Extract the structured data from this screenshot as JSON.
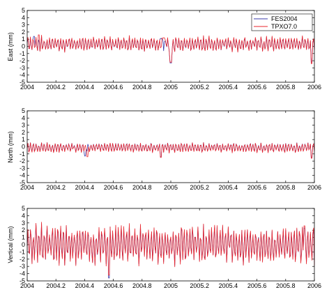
{
  "colors": {
    "FES2004": "#3a3aa8",
    "TPXO7.0": "#e8262e"
  },
  "legend": [
    "FES2004",
    "TPXO7.0"
  ],
  "chart_data": [
    {
      "type": "line",
      "panel": "east",
      "ylabel": "East (mm)",
      "xlim": [
        2004,
        2006
      ],
      "ylim": [
        -5,
        5
      ],
      "xticks": [
        "2004",
        "2004.2",
        "2004.4",
        "2004.6",
        "2004.8",
        "2005",
        "2005.2",
        "2005.4",
        "2005.6",
        "2005.8",
        "2006"
      ],
      "yticks": [
        "-5",
        "-4",
        "-3",
        "-2",
        "-1",
        "0",
        "1",
        "2",
        "3",
        "4",
        "5"
      ],
      "legend_position": "top-right",
      "series": [
        {
          "name": "FES2004",
          "offset": 0.3,
          "amp": 0.9,
          "spikes": [
            [
              2004.05,
              1.4
            ],
            [
              2004.93,
              1.1
            ],
            [
              2005.0,
              -2.3
            ],
            [
              2005.98,
              -2.2
            ]
          ]
        },
        {
          "name": "TPXO7.0",
          "offset": 0.35,
          "amp": 1.0,
          "spikes": [
            [
              2004.08,
              1.6
            ],
            [
              2004.95,
              1.2
            ],
            [
              2005.0,
              -2.2
            ],
            [
              2005.98,
              -2.4
            ]
          ]
        }
      ]
    },
    {
      "type": "line",
      "panel": "north",
      "ylabel": "North (mm)",
      "xlim": [
        2004,
        2006
      ],
      "ylim": [
        -5,
        5
      ],
      "xticks": [
        "2004",
        "2004.2",
        "2004.4",
        "2004.6",
        "2004.8",
        "2005",
        "2005.2",
        "2005.4",
        "2005.6",
        "2005.8",
        "2006"
      ],
      "yticks": [
        "-5",
        "-4",
        "-3",
        "-2",
        "-1",
        "0",
        "1",
        "2",
        "3",
        "4",
        "5"
      ],
      "series": [
        {
          "name": "FES2004",
          "offset": -0.1,
          "amp": 0.6,
          "spikes": [
            [
              2004.4,
              -1.3
            ],
            [
              2004.93,
              -1.4
            ],
            [
              2005.98,
              -1.5
            ]
          ]
        },
        {
          "name": "TPXO7.0",
          "offset": -0.15,
          "amp": 0.65,
          "spikes": [
            [
              2004.42,
              -1.4
            ],
            [
              2004.93,
              -1.5
            ],
            [
              2005.98,
              -1.6
            ]
          ]
        }
      ]
    },
    {
      "type": "line",
      "panel": "vertical",
      "ylabel": "Vertical (mm)",
      "xlim": [
        2004,
        2006
      ],
      "ylim": [
        -5,
        5
      ],
      "xticks": [
        "2004",
        "2004.2",
        "2004.4",
        "2004.6",
        "2004.8",
        "2005",
        "2005.2",
        "2005.4",
        "2005.6",
        "2005.8",
        "2006"
      ],
      "yticks": [
        "-5",
        "-4",
        "-3",
        "-2",
        "-1",
        "0",
        "1",
        "2",
        "3",
        "4",
        "5"
      ],
      "series": [
        {
          "name": "FES2004",
          "offset": 0.0,
          "amp": 2.4,
          "spikes": [
            [
              2004.57,
              -4.6
            ],
            [
              2005.93,
              2.3
            ]
          ]
        },
        {
          "name": "TPXO7.0",
          "offset": 0.0,
          "amp": 2.6,
          "spikes": [
            [
              2004.57,
              -4.2
            ],
            [
              2005.93,
              2.6
            ]
          ]
        }
      ]
    }
  ]
}
